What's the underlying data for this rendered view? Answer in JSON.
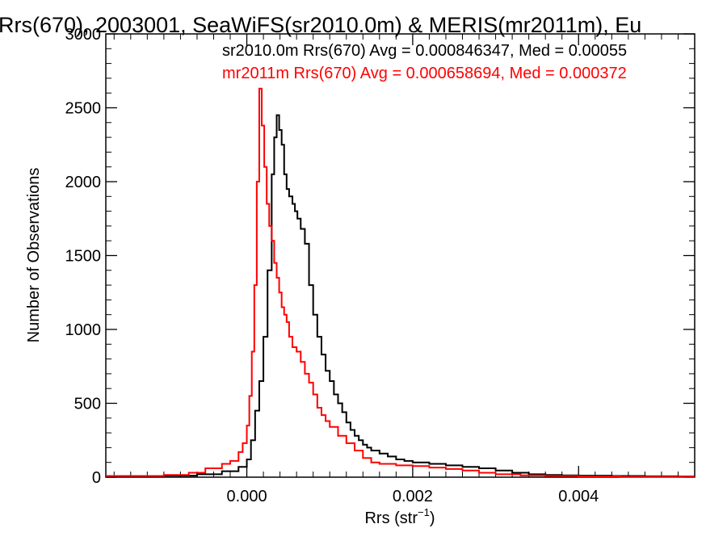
{
  "chart_data": {
    "type": "histogram-step",
    "title": "Rrs(670), 2003001, SeaWiFS(sr2010.0m) & MERIS(mr2011m), Eu",
    "xlabel": "Rrs (str",
    "xlabel_sup": "−1",
    "xlabel_close": ")",
    "ylabel": "Number of Observations",
    "xlim": [
      -0.0017,
      0.0054
    ],
    "ylim": [
      0,
      3000
    ],
    "x_ticks": [
      0.0,
      0.002,
      0.004
    ],
    "x_tick_labels": [
      "0.000",
      "0.002",
      "0.004"
    ],
    "y_ticks": [
      0,
      500,
      1000,
      1500,
      2000,
      2500,
      3000
    ],
    "y_tick_labels": [
      "0",
      "500",
      "1000",
      "1500",
      "2000",
      "2500",
      "3000"
    ],
    "grid": false,
    "legend": "top-right (text annotations)",
    "annotations": [
      {
        "text": "sr2010.0m Rrs(670) Avg = 0.000846347, Med = 0.00055",
        "color": "#000000"
      },
      {
        "text": "mr2011m Rrs(670) Avg = 0.000658694, Med = 0.000372",
        "color": "#ff0000"
      }
    ],
    "series": [
      {
        "color": "#000000",
        "bins": [
          [
            -0.0017,
            5
          ],
          [
            -0.001,
            10
          ],
          [
            -0.0006,
            20
          ],
          [
            -0.0003,
            40
          ],
          [
            -0.0001,
            70
          ],
          [
            0.0,
            120
          ],
          [
            5e-05,
            250
          ],
          [
            0.0001,
            450
          ],
          [
            0.00015,
            650
          ],
          [
            0.0002,
            950
          ],
          [
            0.00025,
            1400
          ],
          [
            0.0003,
            2050
          ],
          [
            0.00033,
            2300
          ],
          [
            0.00036,
            2450
          ],
          [
            0.00039,
            2350
          ],
          [
            0.00042,
            2250
          ],
          [
            0.00045,
            2050
          ],
          [
            0.00048,
            1950
          ],
          [
            0.00051,
            1900
          ],
          [
            0.00055,
            1850
          ],
          [
            0.00058,
            1800
          ],
          [
            0.00061,
            1750
          ],
          [
            0.00065,
            1680
          ],
          [
            0.0007,
            1580
          ],
          [
            0.00075,
            1300
          ],
          [
            0.0008,
            1100
          ],
          [
            0.00085,
            950
          ],
          [
            0.0009,
            830
          ],
          [
            0.00095,
            720
          ],
          [
            0.001,
            650
          ],
          [
            0.00105,
            560
          ],
          [
            0.0011,
            500
          ],
          [
            0.00115,
            440
          ],
          [
            0.0012,
            370
          ],
          [
            0.00125,
            320
          ],
          [
            0.0013,
            280
          ],
          [
            0.00135,
            250
          ],
          [
            0.0014,
            220
          ],
          [
            0.00145,
            200
          ],
          [
            0.0015,
            180
          ],
          [
            0.0016,
            160
          ],
          [
            0.0017,
            140
          ],
          [
            0.0018,
            120
          ],
          [
            0.0019,
            110
          ],
          [
            0.002,
            100
          ],
          [
            0.0022,
            90
          ],
          [
            0.0024,
            80
          ],
          [
            0.0026,
            70
          ],
          [
            0.0028,
            60
          ],
          [
            0.003,
            45
          ],
          [
            0.0032,
            30
          ],
          [
            0.0034,
            20
          ],
          [
            0.0036,
            15
          ],
          [
            0.0038,
            12
          ],
          [
            0.004,
            10
          ],
          [
            0.0044,
            8
          ],
          [
            0.0048,
            6
          ],
          [
            0.0052,
            5
          ]
        ],
        "x_end": 0.0054
      },
      {
        "color": "#ff0000",
        "bins": [
          [
            -0.0017,
            8
          ],
          [
            -0.001,
            15
          ],
          [
            -0.0007,
            30
          ],
          [
            -0.0005,
            60
          ],
          [
            -0.0003,
            90
          ],
          [
            -0.0002,
            110
          ],
          [
            -0.0001,
            170
          ],
          [
            -5e-05,
            230
          ],
          [
            0.0,
            350
          ],
          [
            3e-05,
            550
          ],
          [
            6e-05,
            850
          ],
          [
            9e-05,
            1300
          ],
          [
            0.00012,
            2000
          ],
          [
            0.00015,
            2630
          ],
          [
            0.00018,
            2380
          ],
          [
            0.00021,
            2100
          ],
          [
            0.00024,
            1850
          ],
          [
            0.00027,
            1700
          ],
          [
            0.0003,
            1600
          ],
          [
            0.00033,
            1450
          ],
          [
            0.00036,
            1350
          ],
          [
            0.00039,
            1250
          ],
          [
            0.00042,
            1150
          ],
          [
            0.00045,
            1100
          ],
          [
            0.00048,
            1050
          ],
          [
            0.00051,
            950
          ],
          [
            0.00055,
            880
          ],
          [
            0.0006,
            850
          ],
          [
            0.00065,
            780
          ],
          [
            0.0007,
            700
          ],
          [
            0.00075,
            640
          ],
          [
            0.0008,
            560
          ],
          [
            0.00085,
            470
          ],
          [
            0.0009,
            420
          ],
          [
            0.00095,
            380
          ],
          [
            0.001,
            340
          ],
          [
            0.0011,
            280
          ],
          [
            0.0012,
            230
          ],
          [
            0.0013,
            180
          ],
          [
            0.0014,
            130
          ],
          [
            0.0015,
            100
          ],
          [
            0.0016,
            90
          ],
          [
            0.0018,
            80
          ],
          [
            0.002,
            75
          ],
          [
            0.0022,
            65
          ],
          [
            0.0024,
            55
          ],
          [
            0.0026,
            45
          ],
          [
            0.0028,
            30
          ],
          [
            0.003,
            20
          ],
          [
            0.0033,
            12
          ],
          [
            0.0036,
            8
          ],
          [
            0.004,
            5
          ],
          [
            0.0045,
            3
          ]
        ],
        "x_end": 0.0054
      }
    ]
  }
}
